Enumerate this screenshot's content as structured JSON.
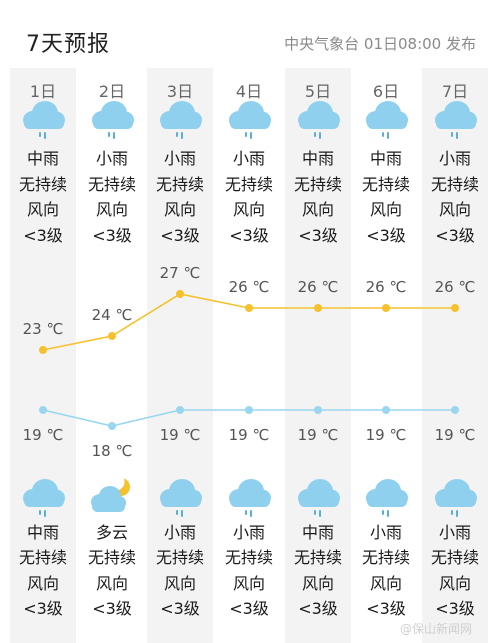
{
  "header": {
    "title": "7天预报",
    "source": "中央气象台 01日08:00 发布"
  },
  "days": [
    {
      "label": "1日",
      "day_weather": "中雨",
      "day_wind": "无持续",
      "day_dir": "风向",
      "day_level": "<3级",
      "day_icon": "rain-cloud-icon",
      "night_weather": "中雨",
      "night_wind": "无持续",
      "night_dir": "风向",
      "night_level": "<3级",
      "night_icon": "rain-cloud-icon"
    },
    {
      "label": "2日",
      "day_weather": "小雨",
      "day_wind": "无持续",
      "day_dir": "风向",
      "day_level": "<3级",
      "day_icon": "rain-cloud-icon",
      "night_weather": "多云",
      "night_wind": "无持续",
      "night_dir": "风向",
      "night_level": "<3级",
      "night_icon": "cloud-moon-icon"
    },
    {
      "label": "3日",
      "day_weather": "小雨",
      "day_wind": "无持续",
      "day_dir": "风向",
      "day_level": "<3级",
      "day_icon": "rain-cloud-icon",
      "night_weather": "小雨",
      "night_wind": "无持续",
      "night_dir": "风向",
      "night_level": "<3级",
      "night_icon": "rain-cloud-icon"
    },
    {
      "label": "4日",
      "day_weather": "小雨",
      "day_wind": "无持续",
      "day_dir": "风向",
      "day_level": "<3级",
      "day_icon": "rain-cloud-icon",
      "night_weather": "小雨",
      "night_wind": "无持续",
      "night_dir": "风向",
      "night_level": "<3级",
      "night_icon": "rain-cloud-icon"
    },
    {
      "label": "5日",
      "day_weather": "中雨",
      "day_wind": "无持续",
      "day_dir": "风向",
      "day_level": "<3级",
      "day_icon": "rain-cloud-icon",
      "night_weather": "中雨",
      "night_wind": "无持续",
      "night_dir": "风向",
      "night_level": "<3级",
      "night_icon": "rain-cloud-icon"
    },
    {
      "label": "6日",
      "day_weather": "中雨",
      "day_wind": "无持续",
      "day_dir": "风向",
      "day_level": "<3级",
      "day_icon": "rain-cloud-icon",
      "night_weather": "小雨",
      "night_wind": "无持续",
      "night_dir": "风向",
      "night_level": "<3级",
      "night_icon": "rain-cloud-icon"
    },
    {
      "label": "7日",
      "day_weather": "小雨",
      "day_wind": "无持续",
      "day_dir": "风向",
      "day_level": "<3级",
      "day_icon": "rain-cloud-icon",
      "night_weather": "小雨",
      "night_wind": "无持续",
      "night_dir": "风向",
      "night_level": "<3级",
      "night_icon": "rain-cloud-icon"
    }
  ],
  "temps": {
    "high": [
      23,
      24,
      27,
      26,
      26,
      26,
      26
    ],
    "low": [
      19,
      18,
      19,
      19,
      19,
      19,
      19
    ],
    "unit": "℃",
    "high_color": "#f5c12c",
    "low_color": "#9ad6f0"
  },
  "colors": {
    "cloud": "#8fd0ee",
    "rain": "#5aaed9",
    "moon": "#f5c12c"
  },
  "watermark": "@保山新闻网"
}
